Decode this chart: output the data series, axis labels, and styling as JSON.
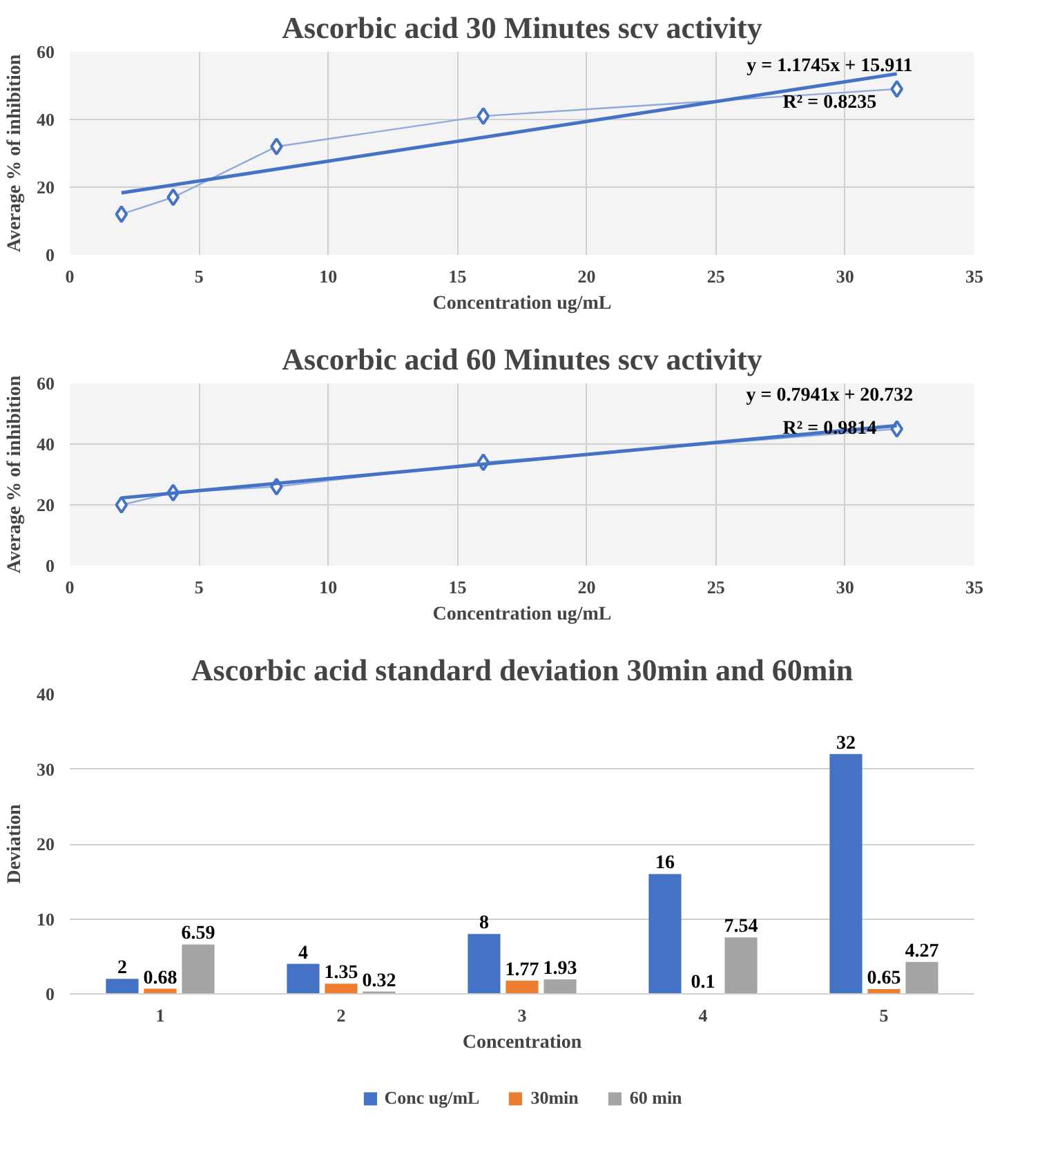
{
  "chart_data": [
    {
      "type": "line",
      "title": "Ascorbic acid 30 Minutes scv activity",
      "xlabel": "Concentration ug/mL",
      "ylabel": "Average % of inhibition",
      "xlim": [
        0,
        35
      ],
      "xticks": [
        0,
        5,
        10,
        15,
        20,
        25,
        30,
        35
      ],
      "ylim": [
        0,
        60
      ],
      "yticks": [
        0,
        20,
        40,
        60
      ],
      "grid": true,
      "legend": false,
      "series": [
        {
          "type": "line",
          "color": "#8faadc",
          "marker": "diamond",
          "x": [
            2,
            4,
            8,
            16,
            32
          ],
          "values": [
            12,
            17,
            32,
            41,
            49
          ]
        },
        {
          "type": "line",
          "color": "#4472c4",
          "marker": "none",
          "x": [
            2,
            32
          ],
          "values": [
            18.3,
            53.5
          ]
        }
      ],
      "annotations": [
        "y = 1.1745x + 15.911",
        "R² = 0.8235"
      ]
    },
    {
      "type": "line",
      "title": "Ascorbic acid 60 Minutes scv activity",
      "xlabel": "Concentration ug/mL",
      "ylabel": "Average % of inhibition",
      "xlim": [
        0,
        35
      ],
      "xticks": [
        0,
        5,
        10,
        15,
        20,
        25,
        30,
        35
      ],
      "ylim": [
        0,
        60
      ],
      "yticks": [
        0,
        20,
        40,
        60
      ],
      "grid": true,
      "legend": false,
      "series": [
        {
          "type": "line",
          "color": "#8faadc",
          "marker": "diamond",
          "x": [
            2,
            4,
            8,
            16,
            32
          ],
          "values": [
            20,
            24,
            26,
            34,
            45
          ]
        },
        {
          "type": "line",
          "color": "#4472c4",
          "marker": "none",
          "x": [
            2,
            32
          ],
          "values": [
            22.3,
            46.1
          ]
        }
      ],
      "annotations": [
        "y = 0.7941x + 20.732",
        "R² = 0.9814"
      ]
    },
    {
      "type": "bar",
      "title": "Ascorbic acid standard deviation 30min and 60min",
      "xlabel": "Concentration",
      "ylabel": "Deviation",
      "categories": [
        "1",
        "2",
        "3",
        "4",
        "5"
      ],
      "ylim": [
        0,
        40
      ],
      "yticks": [
        0,
        10,
        20,
        30,
        40
      ],
      "grid": "y",
      "legend": "bottom",
      "data_labels": true,
      "series": [
        {
          "name": "Conc ug/mL",
          "color": "#4472c4",
          "values": [
            2,
            4,
            8,
            16,
            32
          ]
        },
        {
          "name": "30min",
          "color": "#ed7d31",
          "values": [
            0.68,
            1.35,
            1.77,
            0.1,
            0.65
          ]
        },
        {
          "name": "60 min",
          "color": "#a5a5a5",
          "values": [
            6.59,
            0.32,
            1.93,
            7.54,
            4.27
          ]
        }
      ]
    }
  ]
}
